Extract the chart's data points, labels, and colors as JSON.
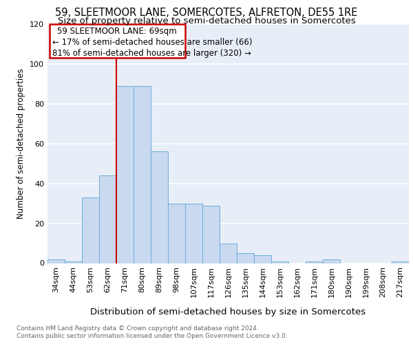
{
  "title": "59, SLEETMOOR LANE, SOMERCOTES, ALFRETON, DE55 1RE",
  "subtitle": "Size of property relative to semi-detached houses in Somercotes",
  "xlabel": "Distribution of semi-detached houses by size in Somercotes",
  "ylabel": "Number of semi-detached properties",
  "categories": [
    "34sqm",
    "44sqm",
    "53sqm",
    "62sqm",
    "71sqm",
    "80sqm",
    "89sqm",
    "98sqm",
    "107sqm",
    "117sqm",
    "126sqm",
    "135sqm",
    "144sqm",
    "153sqm",
    "162sqm",
    "171sqm",
    "180sqm",
    "190sqm",
    "199sqm",
    "208sqm",
    "217sqm"
  ],
  "values": [
    2,
    1,
    33,
    44,
    89,
    89,
    56,
    30,
    30,
    29,
    10,
    5,
    4,
    1,
    0,
    1,
    2,
    0,
    0,
    0,
    1
  ],
  "bar_color": "#c8d9f0",
  "bar_edge_color": "#6baed6",
  "marker_line_color": "#cc0000",
  "annotation_title": "59 SLEETMOOR LANE: 69sqm",
  "annotation_line1": "← 17% of semi-detached houses are smaller (66)",
  "annotation_line2": "81% of semi-detached houses are larger (320) →",
  "annotation_box_color": "#cc0000",
  "ylim": [
    0,
    120
  ],
  "yticks": [
    0,
    20,
    40,
    60,
    80,
    100,
    120
  ],
  "bg_color": "#e8eef8",
  "grid_color": "#ffffff",
  "footer_line1": "Contains HM Land Registry data © Crown copyright and database right 2024.",
  "footer_line2": "Contains public sector information licensed under the Open Government Licence v3.0.",
  "title_fontsize": 10.5,
  "subtitle_fontsize": 9.5,
  "ylabel_fontsize": 8.5,
  "xlabel_fontsize": 9.5,
  "tick_fontsize": 8,
  "annot_fontsize": 8.5,
  "footer_fontsize": 6.5
}
